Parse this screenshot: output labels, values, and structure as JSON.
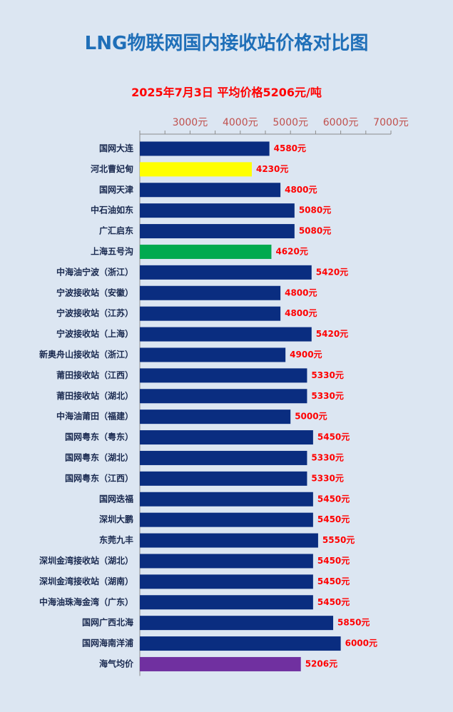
{
  "chart_data": {
    "type": "bar",
    "orientation": "horizontal",
    "title": "LNG物联网国内接收站价格对比图",
    "subtitle": "2025年7月3日 平均价格5206元/吨",
    "xlim": [
      2000,
      7000
    ],
    "x_ticks": [
      "3000元",
      "4000元",
      "5000元",
      "6000元",
      "7000元"
    ],
    "x_tick_values": [
      3000,
      4000,
      5000,
      6000,
      7000
    ],
    "x_axis_position": "top",
    "grid": false,
    "colors": {
      "default": "#0a2d80",
      "label": "#ff0000",
      "axis": "#8c8c8c",
      "category_text": "#1a2a50"
    },
    "categories": [
      "国网大连",
      "河北曹妃甸",
      "国网天津",
      "中石油如东",
      "广汇启东",
      "上海五号沟",
      "中海油宁波（浙江）",
      "宁波接收站（安徽）",
      "宁波接收站（江苏）",
      "宁波接收站（上海）",
      "新奥舟山接收站（浙江）",
      "莆田接收站（江西）",
      "莆田接收站（湖北）",
      "中海油莆田（福建）",
      "国网粤东（粤东）",
      "国网粤东（湖北）",
      "国网粤东（江西）",
      "国网迭福",
      "深圳大鹏",
      "东莞九丰",
      "深圳金湾接收站（湖北）",
      "深圳金湾接收站（湖南）",
      "中海油珠海金湾（广东）",
      "国网广西北海",
      "国网海南洋浦",
      "海气均价"
    ],
    "values": [
      4580,
      4230,
      4800,
      5080,
      5080,
      4620,
      5420,
      4800,
      4800,
      5420,
      4900,
      5330,
      5330,
      5000,
      5450,
      5330,
      5330,
      5450,
      5450,
      5550,
      5450,
      5450,
      5450,
      5850,
      6000,
      5206
    ],
    "value_labels": [
      "4580元",
      "4230元",
      "4800元",
      "5080元",
      "5080元",
      "4620元",
      "5420元",
      "4800元",
      "4800元",
      "5420元",
      "4900元",
      "5330元",
      "5330元",
      "5000元",
      "5450元",
      "5330元",
      "5330元",
      "5450元",
      "5450元",
      "5550元",
      "5450元",
      "5450元",
      "5450元",
      "5850元",
      "6000元",
      "5206元"
    ],
    "highlight_colors": {
      "1": "#ffff00",
      "5": "#00aa4f",
      "25": "#7030a0"
    }
  }
}
